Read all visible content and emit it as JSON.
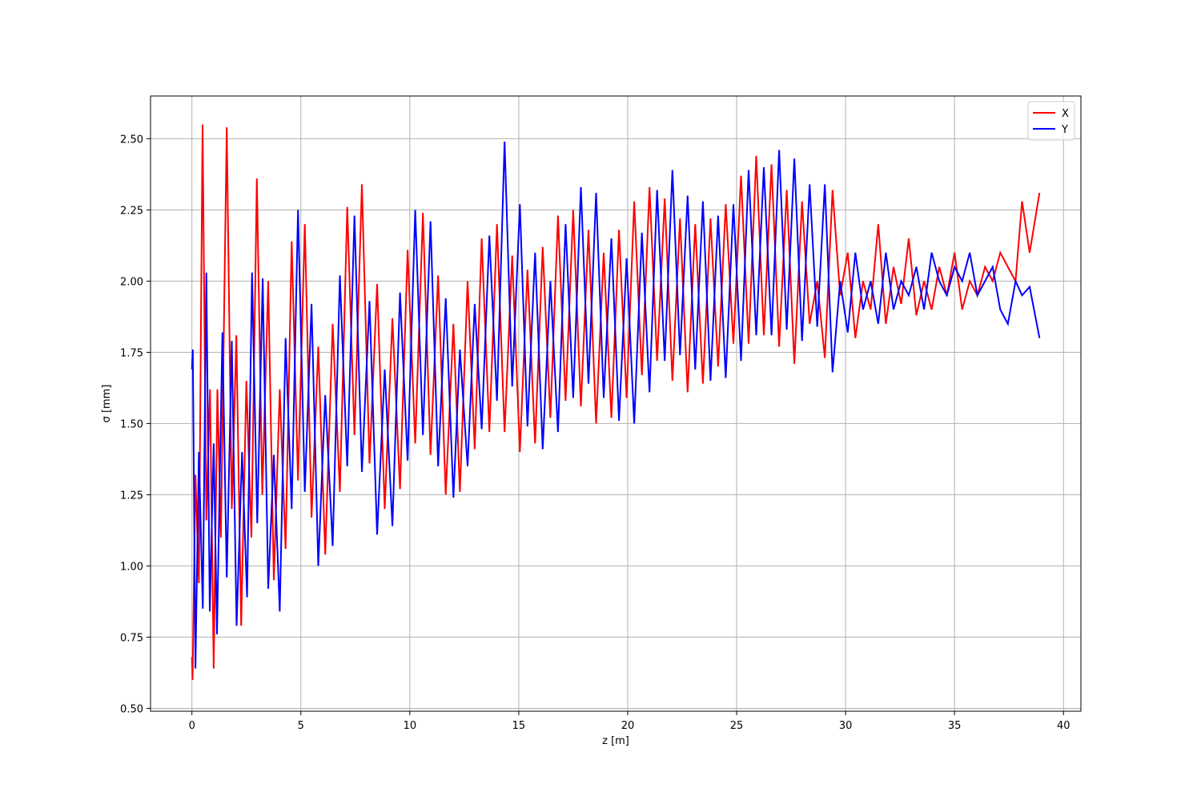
{
  "chart_data": {
    "type": "line",
    "title": "",
    "xlabel": "z [m]",
    "ylabel": "σ [mm]",
    "xlim": [
      -1.9,
      40.8
    ],
    "ylim": [
      0.49,
      2.65
    ],
    "xticks": [
      0,
      5,
      10,
      15,
      20,
      25,
      30,
      35,
      40
    ],
    "xtick_labels": [
      "0",
      "5",
      "10",
      "15",
      "20",
      "25",
      "30",
      "35",
      "40"
    ],
    "yticks": [
      0.5,
      0.75,
      1.0,
      1.25,
      1.5,
      1.75,
      2.0,
      2.25,
      2.5
    ],
    "ytick_labels": [
      "0.50",
      "0.75",
      "1.00",
      "1.25",
      "1.50",
      "1.75",
      "2.00",
      "2.25",
      "2.50"
    ],
    "grid": true,
    "legend": "top-right",
    "series": [
      {
        "name": "X",
        "color": "#ff0000",
        "x": [
          0.0,
          0.03,
          0.16,
          0.32,
          0.49,
          0.66,
          0.83,
          1.0,
          1.17,
          1.33,
          1.6,
          1.83,
          2.04,
          2.26,
          2.5,
          2.73,
          2.98,
          3.23,
          3.5,
          3.76,
          4.03,
          4.3,
          4.58,
          4.87,
          5.18,
          5.49,
          5.8,
          6.12,
          6.46,
          6.79,
          7.13,
          7.46,
          7.8,
          8.15,
          8.5,
          8.85,
          9.2,
          9.55,
          9.9,
          10.25,
          10.6,
          10.95,
          11.3,
          11.65,
          12.0,
          12.3,
          12.65,
          12.98,
          13.3,
          13.65,
          14.0,
          14.35,
          14.7,
          15.05,
          15.4,
          15.75,
          16.1,
          16.45,
          16.8,
          17.15,
          17.5,
          17.85,
          18.2,
          18.55,
          18.9,
          19.25,
          19.6,
          19.95,
          20.3,
          20.65,
          21.0,
          21.35,
          21.7,
          22.05,
          22.4,
          22.75,
          23.1,
          23.45,
          23.8,
          24.15,
          24.5,
          24.85,
          25.2,
          25.55,
          25.9,
          26.25,
          26.6,
          26.95,
          27.3,
          27.65,
          28.0,
          28.35,
          28.7,
          29.05,
          29.4,
          29.75,
          30.1,
          30.45,
          30.8,
          31.15,
          31.5,
          31.85,
          32.2,
          32.55,
          32.9,
          33.25,
          33.6,
          33.95,
          34.3,
          34.65,
          35.0,
          35.35,
          35.7,
          36.05,
          36.4,
          36.75,
          37.1,
          37.45,
          37.8,
          38.1,
          38.45,
          38.9
        ],
        "values": [
          0.68,
          0.6,
          1.32,
          0.94,
          2.55,
          1.16,
          1.62,
          0.64,
          1.62,
          1.1,
          2.54,
          1.2,
          1.81,
          0.79,
          1.65,
          1.1,
          2.36,
          1.25,
          2.0,
          0.95,
          1.62,
          1.06,
          2.14,
          1.3,
          2.2,
          1.17,
          1.77,
          1.04,
          1.85,
          1.26,
          2.26,
          1.46,
          2.34,
          1.36,
          1.99,
          1.2,
          1.87,
          1.27,
          2.11,
          1.43,
          2.24,
          1.39,
          2.02,
          1.25,
          1.85,
          1.26,
          2.0,
          1.41,
          2.15,
          1.47,
          2.2,
          1.47,
          2.09,
          1.4,
          2.04,
          1.43,
          2.12,
          1.52,
          2.23,
          1.58,
          2.25,
          1.56,
          2.18,
          1.5,
          2.1,
          1.52,
          2.18,
          1.59,
          2.28,
          1.67,
          2.33,
          1.72,
          2.29,
          1.65,
          2.22,
          1.61,
          2.2,
          1.64,
          2.22,
          1.7,
          2.27,
          1.78,
          2.37,
          1.78,
          2.44,
          1.81,
          2.41,
          1.77,
          2.32,
          1.71,
          2.28,
          1.85,
          2.0,
          1.73,
          2.32,
          1.95,
          2.1,
          1.8,
          2.0,
          1.9,
          2.2,
          1.85,
          2.05,
          1.92,
          2.15,
          1.88,
          2.0,
          1.9,
          2.05,
          1.95,
          2.1,
          1.9,
          2.0,
          1.95,
          2.05,
          2.0,
          2.1,
          2.05,
          2.0,
          2.28,
          2.1,
          2.31
        ],
        "values_note": ""
      },
      {
        "name": "Y",
        "color": "#0000ff",
        "x": [
          0.0,
          0.04,
          0.16,
          0.32,
          0.5,
          0.66,
          0.82,
          1.0,
          1.15,
          1.4,
          1.6,
          1.83,
          2.05,
          2.3,
          2.53,
          2.76,
          3.0,
          3.25,
          3.5,
          3.76,
          4.03,
          4.3,
          4.58,
          4.87,
          5.18,
          5.49,
          5.8,
          6.12,
          6.46,
          6.79,
          7.13,
          7.46,
          7.8,
          8.15,
          8.5,
          8.85,
          9.2,
          9.55,
          9.9,
          10.25,
          10.6,
          10.95,
          11.3,
          11.65,
          12.0,
          12.3,
          12.65,
          12.98,
          13.3,
          13.65,
          14.0,
          14.35,
          14.7,
          15.05,
          15.4,
          15.75,
          16.1,
          16.45,
          16.8,
          17.15,
          17.5,
          17.85,
          18.2,
          18.55,
          18.9,
          19.25,
          19.6,
          19.95,
          20.3,
          20.65,
          21.0,
          21.35,
          21.7,
          22.05,
          22.4,
          22.75,
          23.1,
          23.45,
          23.8,
          24.15,
          24.5,
          24.85,
          25.2,
          25.55,
          25.9,
          26.25,
          26.6,
          26.95,
          27.3,
          27.65,
          28.0,
          28.35,
          28.7,
          29.05,
          29.4,
          29.75,
          30.1,
          30.45,
          30.8,
          31.15,
          31.5,
          31.85,
          32.2,
          32.55,
          32.9,
          33.25,
          33.6,
          33.95,
          34.3,
          34.65,
          35.0,
          35.35,
          35.7,
          36.05,
          36.4,
          36.75,
          37.1,
          37.45,
          37.8,
          38.1,
          38.45,
          38.9
        ],
        "values": [
          1.69,
          1.76,
          0.64,
          1.4,
          0.85,
          2.03,
          0.84,
          1.43,
          0.76,
          1.82,
          0.96,
          1.79,
          0.79,
          1.4,
          0.89,
          2.03,
          1.15,
          2.01,
          0.92,
          1.39,
          0.84,
          1.8,
          1.2,
          2.25,
          1.26,
          1.92,
          1.0,
          1.6,
          1.07,
          2.02,
          1.35,
          2.23,
          1.33,
          1.93,
          1.11,
          1.69,
          1.14,
          1.96,
          1.37,
          2.25,
          1.46,
          2.21,
          1.35,
          1.94,
          1.24,
          1.76,
          1.35,
          1.92,
          1.48,
          2.16,
          1.58,
          2.49,
          1.63,
          2.27,
          1.49,
          2.1,
          1.41,
          2.0,
          1.47,
          2.2,
          1.59,
          2.33,
          1.64,
          2.31,
          1.59,
          2.15,
          1.51,
          2.08,
          1.5,
          2.17,
          1.61,
          2.32,
          1.72,
          2.39,
          1.74,
          2.3,
          1.69,
          2.28,
          1.65,
          2.23,
          1.66,
          2.27,
          1.72,
          2.39,
          1.81,
          2.4,
          1.81,
          2.46,
          1.83,
          2.43,
          1.79,
          2.34,
          1.84,
          2.34,
          1.68,
          2.0,
          1.82,
          2.1,
          1.9,
          2.0,
          1.85,
          2.1,
          1.9,
          2.0,
          1.95,
          2.05,
          1.9,
          2.1,
          2.0,
          1.95,
          2.05,
          2.0,
          2.1,
          1.95,
          2.0,
          2.05,
          1.9,
          1.85,
          2.0,
          1.95,
          1.98,
          1.8
        ],
        "values_note": ""
      }
    ]
  }
}
